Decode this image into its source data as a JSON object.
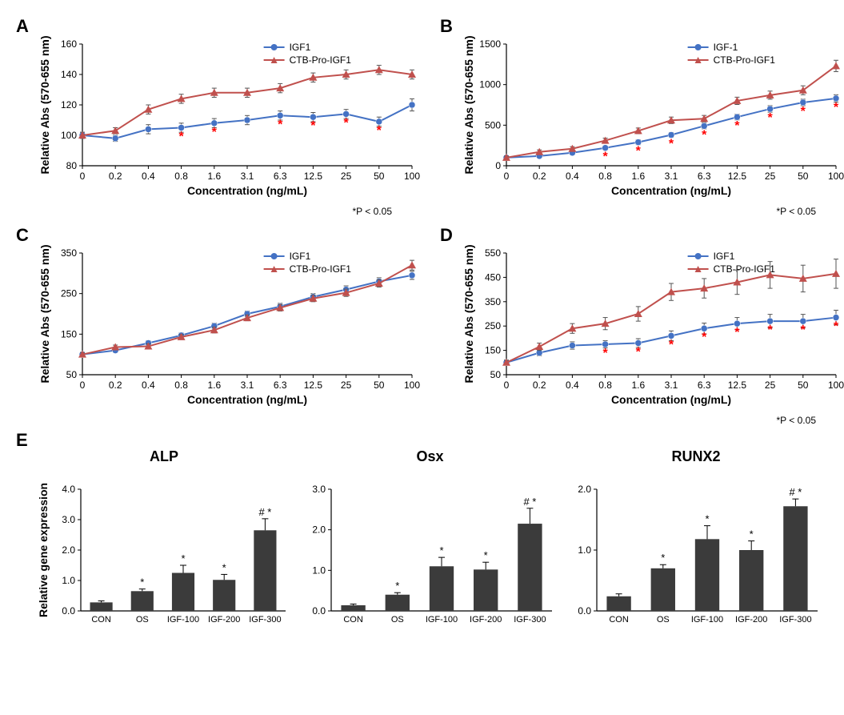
{
  "panels": {
    "A": {
      "label": "A",
      "ylabel": "Relative Abs (570-655 nm)",
      "xlabel": "Concentration (ng/mL)",
      "xticks": [
        "0",
        "0.2",
        "0.4",
        "0.8",
        "1.6",
        "3.1",
        "6.3",
        "12.5",
        "25",
        "50",
        "100"
      ],
      "ylim": [
        80,
        160
      ],
      "ytick_step": 20,
      "series": [
        {
          "name": "IGF1",
          "color": "#4472c4",
          "marker": "circle",
          "y": [
            100,
            98,
            104,
            105,
            108,
            110,
            113,
            112,
            114,
            109,
            120
          ],
          "err": [
            2,
            2,
            3,
            3,
            3,
            3,
            3,
            3,
            3,
            3,
            4
          ]
        },
        {
          "name": "CTB-Pro-IGF1",
          "color": "#c0504d",
          "marker": "triangle",
          "y": [
            100,
            103,
            117,
            124,
            128,
            128,
            131,
            138,
            140,
            143,
            140
          ],
          "err": [
            2,
            2,
            3,
            3,
            3,
            3,
            3,
            3,
            3,
            3,
            3
          ]
        }
      ],
      "sig_x_indices": [
        3,
        4,
        6,
        7,
        8,
        9
      ],
      "sig_y_offset": -10,
      "pnote": "*P < 0.05"
    },
    "B": {
      "label": "B",
      "ylabel": "Relative Abs (570-655 nm)",
      "xlabel": "Concentration (ng/mL)",
      "xticks": [
        "0",
        "0.2",
        "0.4",
        "0.8",
        "1.6",
        "3.1",
        "6.3",
        "12.5",
        "25",
        "50",
        "100"
      ],
      "ylim": [
        0,
        1500
      ],
      "ytick_step": 500,
      "series": [
        {
          "name": "IGF-1",
          "color": "#4472c4",
          "marker": "circle",
          "y": [
            100,
            120,
            160,
            220,
            290,
            380,
            490,
            600,
            700,
            780,
            830
          ],
          "err": [
            20,
            20,
            25,
            25,
            30,
            30,
            35,
            35,
            40,
            40,
            45
          ]
        },
        {
          "name": "CTB-Pro-IGF1",
          "color": "#c0504d",
          "marker": "triangle",
          "y": [
            100,
            170,
            210,
            310,
            430,
            560,
            580,
            800,
            870,
            930,
            1230
          ],
          "err": [
            20,
            25,
            25,
            30,
            35,
            40,
            40,
            45,
            50,
            55,
            70
          ]
        }
      ],
      "sig_x_indices": [
        3,
        4,
        5,
        6,
        7,
        8,
        9,
        10
      ],
      "sig_y_offset": -80,
      "pnote": "*P < 0.05"
    },
    "C": {
      "label": "C",
      "ylabel": "Relative Abs (570-655 nm)",
      "xlabel": "Concentration (ng/mL)",
      "xticks": [
        "0",
        "0.2",
        "0.4",
        "0.8",
        "1.6",
        "3.1",
        "6.3",
        "12.5",
        "25",
        "50",
        "100"
      ],
      "ylim": [
        50,
        350
      ],
      "ytick_step": 100,
      "series": [
        {
          "name": "IGF1",
          "color": "#4472c4",
          "marker": "circle",
          "y": [
            100,
            110,
            128,
            147,
            170,
            200,
            218,
            242,
            260,
            280,
            295
          ],
          "err": [
            5,
            5,
            6,
            6,
            7,
            7,
            8,
            8,
            9,
            9,
            10
          ]
        },
        {
          "name": "CTB-Pro-IGF1",
          "color": "#c0504d",
          "marker": "triangle",
          "y": [
            100,
            118,
            120,
            143,
            160,
            190,
            215,
            238,
            252,
            275,
            320
          ],
          "err": [
            5,
            5,
            6,
            6,
            7,
            7,
            8,
            8,
            9,
            9,
            12
          ]
        }
      ],
      "sig_x_indices": [],
      "pnote": ""
    },
    "D": {
      "label": "D",
      "ylabel": "Relative Abs (570-655 nm)",
      "xlabel": "Concentration (ng/mL)",
      "xticks": [
        "0",
        "0.2",
        "0.4",
        "0.8",
        "1.6",
        "3.1",
        "6.3",
        "12.5",
        "25",
        "50",
        "100"
      ],
      "ylim": [
        50,
        550
      ],
      "ytick_step": 100,
      "series": [
        {
          "name": "IGF1",
          "color": "#4472c4",
          "marker": "circle",
          "y": [
            100,
            140,
            170,
            175,
            180,
            210,
            240,
            260,
            270,
            270,
            285
          ],
          "err": [
            10,
            12,
            15,
            15,
            18,
            20,
            22,
            25,
            28,
            28,
            30
          ]
        },
        {
          "name": "CTB-Pro-IGF1",
          "color": "#c0504d",
          "marker": "triangle",
          "y": [
            100,
            165,
            240,
            260,
            300,
            390,
            405,
            430,
            460,
            445,
            465
          ],
          "err": [
            10,
            15,
            20,
            25,
            30,
            35,
            40,
            50,
            55,
            55,
            60
          ]
        }
      ],
      "sig_x_indices": [
        3,
        4,
        5,
        6,
        7,
        8,
        9,
        10
      ],
      "sig_y_offset": -40,
      "pnote": "*P < 0.05"
    }
  },
  "barRow": {
    "label": "E",
    "ylabel": "Relative gene expression",
    "categories": [
      "CON",
      "OS",
      "IGF-100",
      "IGF-200",
      "IGF-300"
    ],
    "bar_color": "#3b3b3b",
    "charts": [
      {
        "title": "ALP",
        "ylim": [
          0,
          4
        ],
        "ytick_step": 1,
        "values": [
          0.28,
          0.65,
          1.25,
          1.02,
          2.65
        ],
        "err": [
          0.05,
          0.07,
          0.25,
          0.18,
          0.38
        ],
        "sig": [
          "",
          "*",
          "*",
          "*",
          "# *"
        ]
      },
      {
        "title": "Osx",
        "ylim": [
          0,
          3
        ],
        "ytick_step": 1,
        "values": [
          0.14,
          0.4,
          1.1,
          1.02,
          2.15
        ],
        "err": [
          0.03,
          0.05,
          0.22,
          0.18,
          0.38
        ],
        "sig": [
          "",
          "*",
          "*",
          "*",
          "# *"
        ]
      },
      {
        "title": "RUNX2",
        "ylim": [
          0,
          2
        ],
        "ytick_step": 1,
        "values": [
          0.24,
          0.7,
          1.18,
          1.0,
          1.72
        ],
        "err": [
          0.04,
          0.06,
          0.22,
          0.15,
          0.12
        ],
        "sig": [
          "",
          "*",
          "*",
          "*",
          "# *"
        ]
      }
    ]
  },
  "style": {
    "axis_color": "#000000",
    "grid_color": "#e0e0e0",
    "sig_color": "#ff0000",
    "bg": "#ffffff",
    "font_axis": 12,
    "font_label": 14,
    "line_w": 2,
    "marker_r": 4,
    "errbar_color": "#555555"
  }
}
